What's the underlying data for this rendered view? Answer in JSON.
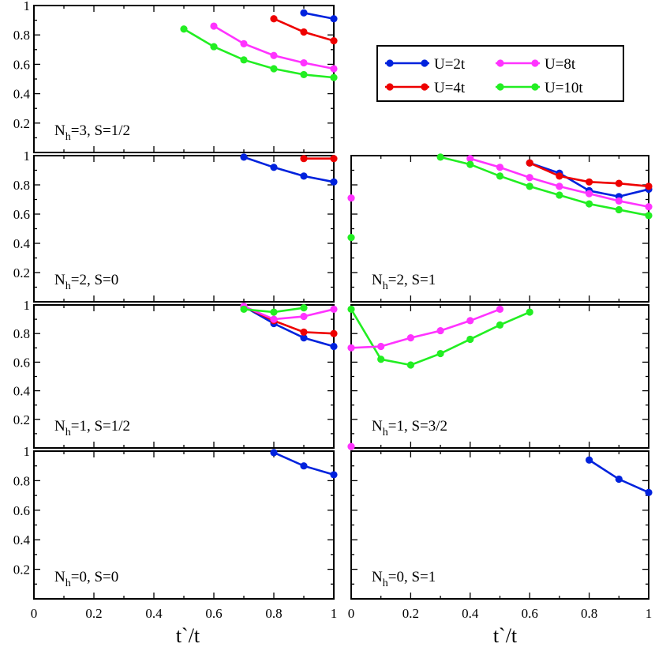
{
  "chart_data": {
    "type": "line",
    "colors": {
      "U=2t": "#0022dd",
      "U=4t": "#ee0000",
      "U=8t": "#ff33ff",
      "U=10t": "#22ee22"
    },
    "legend": {
      "placement": "top-right",
      "entries": [
        "U=2t",
        "U=4t",
        "U=8t",
        "U=10t"
      ]
    },
    "xlabel": "t`/t",
    "xlim": [
      0,
      1
    ],
    "ylim": [
      0,
      1
    ],
    "xticks": [
      "0",
      "0.2",
      "0.4",
      "0.6",
      "0.8",
      "1"
    ],
    "yticks": [
      "0.2",
      "0.4",
      "0.6",
      "0.8",
      "1"
    ],
    "panels": [
      {
        "id": "nh3-s12",
        "label_main": "N",
        "label_sub": "h",
        "label_rest": "=3, S=1/2",
        "series": [
          {
            "name": "U=2t",
            "x": [
              0.9,
              1.0
            ],
            "y": [
              0.95,
              0.91
            ]
          },
          {
            "name": "U=4t",
            "x": [
              0.8,
              0.9,
              1.0
            ],
            "y": [
              0.91,
              0.82,
              0.76
            ]
          },
          {
            "name": "U=8t",
            "x": [
              0.6,
              0.7,
              0.8,
              0.9,
              1.0
            ],
            "y": [
              0.86,
              0.74,
              0.66,
              0.61,
              0.57
            ]
          },
          {
            "name": "U=10t",
            "x": [
              0.5,
              0.6,
              0.7,
              0.8,
              0.9,
              1.0
            ],
            "y": [
              0.84,
              0.72,
              0.63,
              0.57,
              0.53,
              0.51
            ]
          }
        ]
      },
      {
        "id": "nh2-s0",
        "label_main": "N",
        "label_sub": "h",
        "label_rest": "=2, S=0",
        "series": [
          {
            "name": "U=2t",
            "x": [
              0.7,
              0.8,
              0.9,
              1.0
            ],
            "y": [
              0.99,
              0.92,
              0.86,
              0.82
            ]
          },
          {
            "name": "U=4t",
            "x": [
              0.9,
              1.0
            ],
            "y": [
              0.98,
              0.98
            ]
          }
        ]
      },
      {
        "id": "nh2-s1",
        "label_main": "N",
        "label_sub": "h",
        "label_rest": "=2, S=1",
        "series": [
          {
            "name": "U=2t",
            "x": [
              0.6,
              0.7,
              0.8,
              0.9,
              1.0
            ],
            "y": [
              0.95,
              0.88,
              0.76,
              0.72,
              0.77
            ]
          },
          {
            "name": "U=4t",
            "x": [
              0.6,
              0.7,
              0.8,
              0.9,
              1.0
            ],
            "y": [
              0.95,
              0.86,
              0.82,
              0.81,
              0.79
            ]
          },
          {
            "name": "U=8t",
            "x": [
              0.0,
              0.4,
              0.5,
              0.6,
              0.7,
              0.8,
              0.9,
              1.0
            ],
            "y": [
              0.71,
              0.98,
              0.92,
              0.85,
              0.79,
              0.74,
              0.69,
              0.65
            ]
          },
          {
            "name": "U=10t",
            "x": [
              0.0,
              0.3,
              0.4,
              0.5,
              0.6,
              0.7,
              0.8,
              0.9,
              1.0
            ],
            "y": [
              0.44,
              0.99,
              0.94,
              0.86,
              0.79,
              0.73,
              0.67,
              0.63,
              0.59
            ]
          }
        ],
        "isolated_first_point": true
      },
      {
        "id": "nh1-s12",
        "label_main": "N",
        "label_sub": "h",
        "label_rest": "=1, S=1/2",
        "series": [
          {
            "name": "U=2t",
            "x": [
              0.7,
              0.8,
              0.9,
              1.0
            ],
            "y": [
              0.99,
              0.87,
              0.77,
              0.71
            ]
          },
          {
            "name": "U=4t",
            "x": [
              0.7,
              0.8,
              0.9,
              1.0
            ],
            "y": [
              0.99,
              0.89,
              0.81,
              0.8
            ]
          },
          {
            "name": "U=8t",
            "x": [
              0.7,
              0.8,
              0.9,
              1.0
            ],
            "y": [
              0.99,
              0.9,
              0.92,
              0.97
            ]
          },
          {
            "name": "U=10t",
            "x": [
              0.7,
              0.8,
              0.9
            ],
            "y": [
              0.97,
              0.95,
              0.98
            ]
          }
        ]
      },
      {
        "id": "nh1-s32",
        "label_main": "N",
        "label_sub": "h",
        "label_rest": "=1, S=3/2",
        "series": [
          {
            "name": "U=10t",
            "x": [
              0.0,
              0.1,
              0.2,
              0.3,
              0.4,
              0.5,
              0.6
            ],
            "y": [
              0.97,
              0.62,
              0.58,
              0.66,
              0.76,
              0.86,
              0.95
            ]
          },
          {
            "name": "U=8t",
            "x": [
              0.0,
              0.1,
              0.2,
              0.3,
              0.4,
              0.5
            ],
            "y": [
              0.7,
              0.71,
              0.77,
              0.82,
              0.89,
              0.97
            ]
          },
          {
            "name": "U=8t",
            "x": [
              0.0
            ],
            "y": [
              0.01
            ]
          }
        ]
      },
      {
        "id": "nh0-s0",
        "label_main": "N",
        "label_sub": "h",
        "label_rest": "=0, S=0",
        "series": [
          {
            "name": "U=2t",
            "x": [
              0.8,
              0.9,
              1.0
            ],
            "y": [
              0.99,
              0.9,
              0.84
            ]
          }
        ]
      },
      {
        "id": "nh0-s1",
        "label_main": "N",
        "label_sub": "h",
        "label_rest": "=0, S=1",
        "series": [
          {
            "name": "U=2t",
            "x": [
              0.8,
              0.9,
              1.0
            ],
            "y": [
              0.94,
              0.81,
              0.72
            ]
          }
        ]
      }
    ]
  }
}
